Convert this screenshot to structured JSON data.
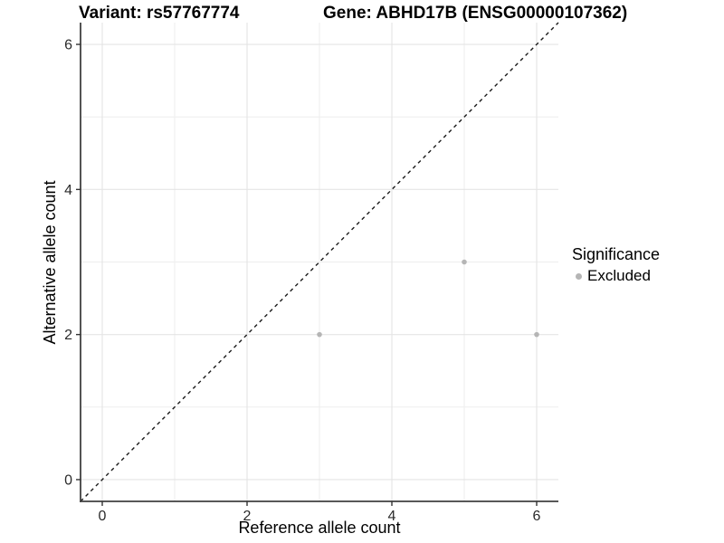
{
  "titles": {
    "variant": "Variant: rs57767774",
    "gene": "Gene: ABHD17B (ENSG00000107362)"
  },
  "axes": {
    "x": {
      "label": "Reference allele count",
      "ticks": [
        0,
        2,
        4,
        6
      ]
    },
    "y": {
      "label": "Alternative allele count",
      "ticks": [
        0,
        2,
        4,
        6
      ]
    }
  },
  "legend": {
    "title": "Significance",
    "items": [
      {
        "label": "Excluded",
        "color": "#b5b5b5"
      }
    ]
  },
  "chart_data": {
    "type": "scatter",
    "title": "Variant: rs57767774 / Gene: ABHD17B (ENSG00000107362)",
    "xlabel": "Reference allele count",
    "ylabel": "Alternative allele count",
    "xlim": [
      -0.3,
      6.3
    ],
    "ylim": [
      -0.3,
      6.3
    ],
    "x_ticks": [
      0,
      2,
      4,
      6
    ],
    "y_ticks": [
      0,
      2,
      4,
      6
    ],
    "x_grid_major": [
      0,
      2,
      4,
      6
    ],
    "x_grid_minor": [
      1,
      3,
      5
    ],
    "y_grid_major": [
      0,
      2,
      4,
      6
    ],
    "y_grid_minor": [
      1,
      3,
      5
    ],
    "grid": true,
    "legend_position": "right",
    "identity_line": {
      "style": "dashed",
      "from": [
        -0.3,
        -0.3
      ],
      "to": [
        6.3,
        6.3
      ]
    },
    "series": [
      {
        "name": "Excluded",
        "color": "#b5b5b5",
        "points": [
          [
            3,
            2
          ],
          [
            5,
            3
          ],
          [
            6,
            2
          ]
        ]
      }
    ],
    "colors": {
      "background": "#ffffff",
      "axis_line": "#404040",
      "tick_mark": "#333333",
      "tick_label": "#2b2b2b",
      "grid_major": "#e4e4e4",
      "grid_minor": "#eeeeee",
      "identity_line": "#1a1a1a"
    }
  }
}
